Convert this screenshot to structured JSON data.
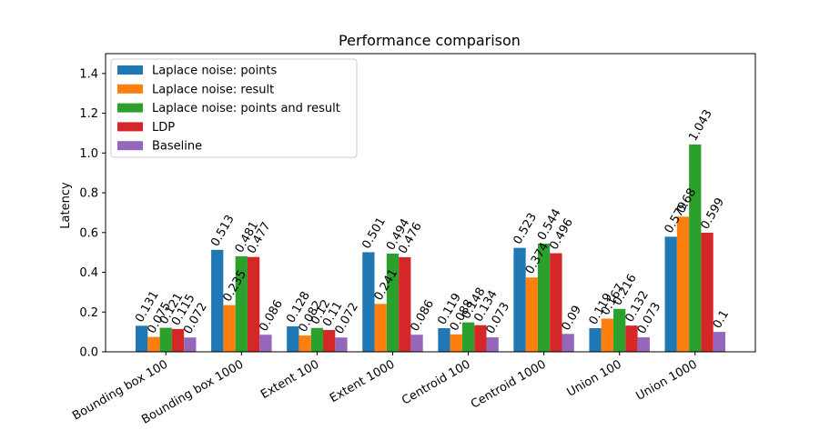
{
  "chart_data": {
    "type": "bar",
    "title": "Performance comparison",
    "xlabel": "",
    "ylabel": "Latency",
    "ylim": [
      0,
      1.5
    ],
    "yticks": [
      0.0,
      0.2,
      0.4,
      0.6,
      0.8,
      1.0,
      1.2,
      1.4
    ],
    "ytick_labels": [
      "0.0",
      "0.2",
      "0.4",
      "0.6",
      "0.8",
      "1.0",
      "1.2",
      "1.4"
    ],
    "categories": [
      "Bounding box 100",
      "Bounding box 1000",
      "Extent 100",
      "Extent 1000",
      "Centroid 100",
      "Centroid 1000",
      "Union 100",
      "Union 1000"
    ],
    "series": [
      {
        "name": "Laplace noise: points",
        "color": "#1f77b4",
        "values": [
          0.131,
          0.513,
          0.128,
          0.501,
          0.119,
          0.523,
          0.119,
          0.579
        ],
        "labels": [
          "0.131",
          "0.513",
          "0.128",
          "0.501",
          "0.119",
          "0.523",
          "0.119",
          "0.579"
        ]
      },
      {
        "name": "Laplace noise: result",
        "color": "#ff7f0e",
        "values": [
          0.075,
          0.235,
          0.082,
          0.241,
          0.088,
          0.374,
          0.167,
          0.68
        ],
        "labels": [
          "0.075",
          "0.235",
          "0.082",
          "0.241",
          "0.088",
          "0.374",
          "0.167",
          "0.68"
        ]
      },
      {
        "name": "Laplace noise: points and result",
        "color": "#2ca02c",
        "values": [
          0.121,
          0.481,
          0.12,
          0.494,
          0.148,
          0.544,
          0.216,
          1.043
        ],
        "labels": [
          "0.121",
          "0.481",
          "0.12",
          "0.494",
          "0.148",
          "0.544",
          "0.216",
          "1.043"
        ]
      },
      {
        "name": "LDP",
        "color": "#d62728",
        "values": [
          0.115,
          0.477,
          0.11,
          0.476,
          0.134,
          0.496,
          0.132,
          0.599
        ],
        "labels": [
          "0.115",
          "0.477",
          "0.11",
          "0.476",
          "0.134",
          "0.496",
          "0.132",
          "0.599"
        ]
      },
      {
        "name": "Baseline",
        "color": "#9467bd",
        "values": [
          0.072,
          0.086,
          0.072,
          0.086,
          0.073,
          0.09,
          0.073,
          0.1
        ],
        "labels": [
          "0.072",
          "0.086",
          "0.072",
          "0.086",
          "0.073",
          "0.09",
          "0.073",
          "0.1"
        ]
      }
    ],
    "grid": false,
    "legend_position": "upper-left"
  }
}
